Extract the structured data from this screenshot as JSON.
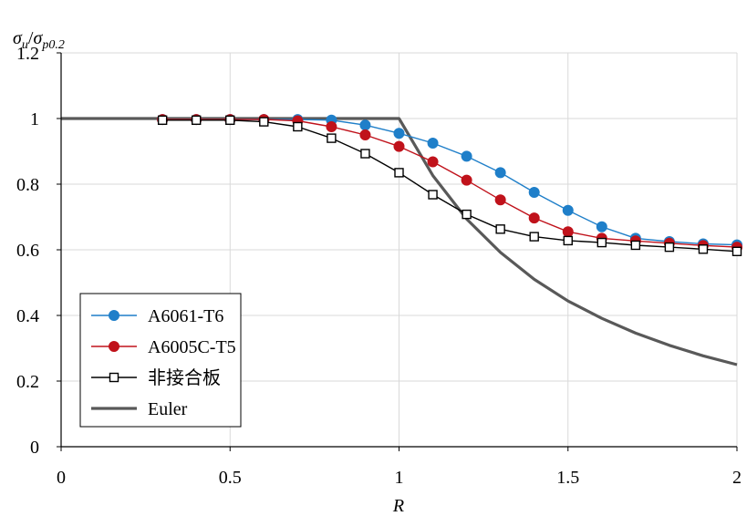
{
  "chart_data": {
    "type": "line",
    "title": "",
    "ylabel": {
      "main": "σ",
      "sub1": "u",
      "slash": "/",
      "main2": "σ",
      "sub2": "p0.2"
    },
    "xlabel": "R",
    "xlim": [
      0,
      2
    ],
    "ylim": [
      0,
      1.2
    ],
    "x_ticks": [
      "0",
      "0.5",
      "1",
      "1.5",
      "2"
    ],
    "y_ticks": [
      "0",
      "0.2",
      "0.4",
      "0.6",
      "0.8",
      "1",
      "1.2"
    ],
    "grid": "horizontal",
    "legend_position": "bottom-left",
    "series": [
      {
        "name": "A6061-T6",
        "color": "#1f7fc9",
        "marker": "filled-circle",
        "x": [
          0.3,
          0.4,
          0.5,
          0.6,
          0.7,
          0.8,
          0.9,
          1.0,
          1.1,
          1.2,
          1.3,
          1.4,
          1.5,
          1.6,
          1.7,
          1.8,
          1.9,
          2.0
        ],
        "y": [
          0.997,
          0.997,
          0.997,
          0.997,
          0.997,
          0.995,
          0.98,
          0.955,
          0.925,
          0.885,
          0.835,
          0.775,
          0.72,
          0.67,
          0.635,
          0.625,
          0.618,
          0.615
        ]
      },
      {
        "name": "A6005C-T5",
        "color": "#c0121b",
        "marker": "filled-circle",
        "x": [
          0.3,
          0.4,
          0.5,
          0.6,
          0.7,
          0.8,
          0.9,
          1.0,
          1.1,
          1.2,
          1.3,
          1.4,
          1.5,
          1.6,
          1.7,
          1.8,
          1.9,
          2.0
        ],
        "y": [
          0.997,
          0.997,
          0.997,
          0.997,
          0.993,
          0.975,
          0.95,
          0.915,
          0.868,
          0.812,
          0.752,
          0.697,
          0.655,
          0.635,
          0.627,
          0.62,
          0.613,
          0.608
        ]
      },
      {
        "name": "非接合板",
        "color": "#000000",
        "marker": "open-square",
        "x": [
          0.3,
          0.4,
          0.5,
          0.6,
          0.7,
          0.8,
          0.9,
          1.0,
          1.1,
          1.2,
          1.3,
          1.4,
          1.5,
          1.6,
          1.7,
          1.8,
          1.9,
          2.0
        ],
        "y": [
          0.995,
          0.995,
          0.995,
          0.99,
          0.975,
          0.94,
          0.893,
          0.835,
          0.768,
          0.708,
          0.663,
          0.64,
          0.628,
          0.622,
          0.614,
          0.608,
          0.602,
          0.595
        ]
      },
      {
        "name": "Euler",
        "color": "#595959",
        "marker": "none",
        "x": [
          0,
          0.1,
          0.2,
          0.3,
          0.4,
          0.5,
          0.6,
          0.7,
          0.8,
          0.9,
          1.0,
          1.1,
          1.2,
          1.3,
          1.4,
          1.5,
          1.6,
          1.7,
          1.8,
          1.9,
          2.0
        ],
        "y": [
          1,
          1,
          1,
          1,
          1,
          1,
          1,
          1,
          1,
          1,
          1,
          0.826,
          0.694,
          0.592,
          0.51,
          0.444,
          0.391,
          0.346,
          0.309,
          0.277,
          0.25
        ]
      }
    ]
  }
}
